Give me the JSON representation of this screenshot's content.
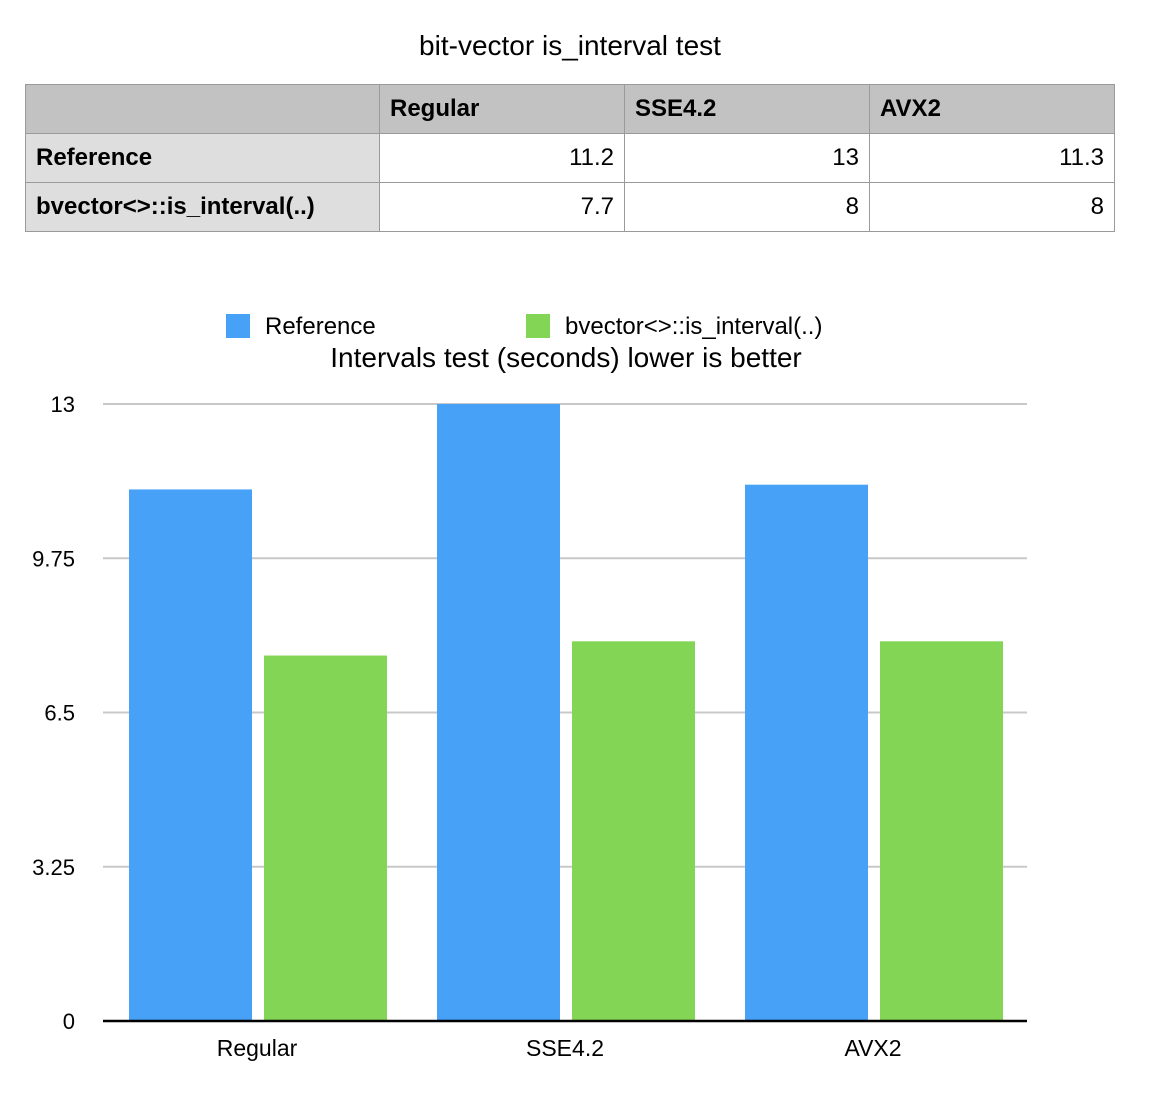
{
  "table": {
    "title": "bit-vector is_interval test",
    "columns": [
      "",
      "Regular",
      "SSE4.2",
      "AVX2"
    ],
    "rows": [
      {
        "label": "Reference",
        "values": [
          "11.2",
          "13",
          "11.3"
        ]
      },
      {
        "label": "bvector<>::is_interval(..)",
        "values": [
          "7.7",
          "8",
          "8"
        ]
      }
    ]
  },
  "chart_data": {
    "type": "bar",
    "title": "Intervals test (seconds) lower is better",
    "categories": [
      "Regular",
      "SSE4.2",
      "AVX2"
    ],
    "series": [
      {
        "name": "Reference",
        "values": [
          11.2,
          13,
          11.3
        ],
        "color": "#47a1f7"
      },
      {
        "name": "bvector<>::is_interval(..)",
        "values": [
          7.7,
          8,
          8
        ],
        "color": "#82d555"
      }
    ],
    "ylim": [
      0,
      13
    ],
    "yticks": [
      "0",
      "3.25",
      "6.5",
      "9.75",
      "13"
    ],
    "grid": true,
    "legend": "top"
  }
}
